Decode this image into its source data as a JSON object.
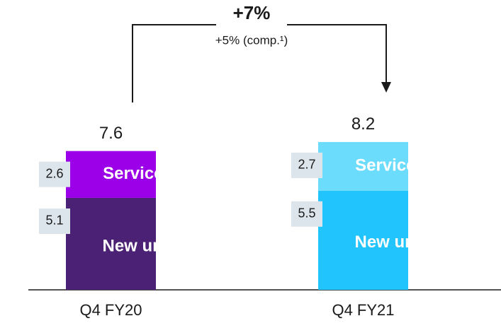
{
  "chart_data": {
    "type": "stacked_bar",
    "categories": [
      "Q4 FY20",
      "Q4 FY21"
    ],
    "series": [
      {
        "name": "New unit",
        "colors": [
          "#4b2175",
          "#21c4fd"
        ],
        "values": [
          5.1,
          5.5
        ]
      },
      {
        "name": "Services",
        "colors": [
          "#9b00e8",
          "#6cdcfd"
        ],
        "values": [
          2.6,
          2.7
        ]
      }
    ],
    "totals": [
      7.6,
      8.2
    ],
    "annotation": {
      "text": "+7%",
      "subtext": "+5% (comp.¹)"
    }
  }
}
